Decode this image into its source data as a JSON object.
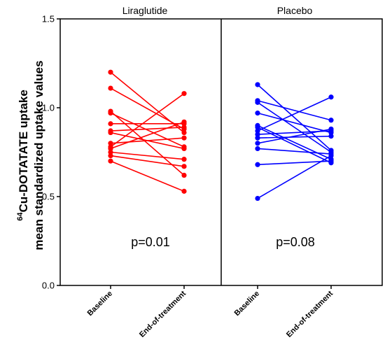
{
  "chart_data": {
    "type": "line",
    "ylabel_line1_sup": "64",
    "ylabel_line1": "Cu-DOTATATE uptake",
    "ylabel_line2": "mean standardized uptake values",
    "ylim": [
      0.0,
      1.5
    ],
    "yticks": [
      "0.0",
      "0.5",
      "1.0",
      "1.5"
    ],
    "grid": false,
    "panels": [
      {
        "title": "Liraglutide",
        "color": "#ff0000",
        "categories": [
          "Baseline",
          "End-of-treatment"
        ],
        "p_value": "p=0.01",
        "pairs": [
          [
            1.2,
            0.86
          ],
          [
            1.11,
            0.88
          ],
          [
            0.98,
            0.62
          ],
          [
            0.97,
            0.78
          ],
          [
            0.91,
            0.91
          ],
          [
            0.87,
            0.89
          ],
          [
            0.86,
            0.77
          ],
          [
            0.8,
            0.83
          ],
          [
            0.78,
            1.08
          ],
          [
            0.77,
            0.92
          ],
          [
            0.75,
            0.71
          ],
          [
            0.73,
            0.67
          ],
          [
            0.7,
            0.53
          ]
        ]
      },
      {
        "title": "Placebo",
        "color": "#0000ff",
        "categories": [
          "Baseline",
          "End-of-treatment"
        ],
        "p_value": "p=0.08",
        "pairs": [
          [
            1.13,
            0.76
          ],
          [
            1.04,
            0.93
          ],
          [
            1.03,
            0.75
          ],
          [
            0.97,
            0.86
          ],
          [
            0.9,
            0.71
          ],
          [
            0.89,
            0.69
          ],
          [
            0.87,
            1.06
          ],
          [
            0.85,
            0.87
          ],
          [
            0.83,
            0.84
          ],
          [
            0.8,
            0.88
          ],
          [
            0.77,
            0.74
          ],
          [
            0.68,
            0.7
          ],
          [
            0.49,
            0.73
          ]
        ]
      }
    ]
  }
}
